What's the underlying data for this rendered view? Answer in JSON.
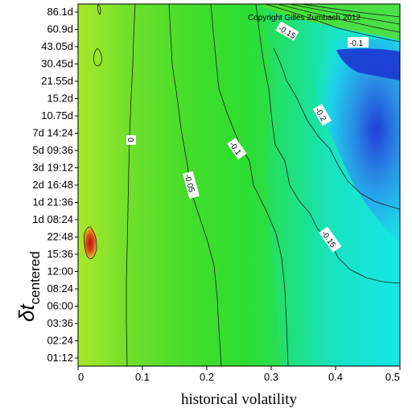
{
  "chart_data": {
    "type": "heatmap",
    "subtype": "filled-contour",
    "xlabel": "historical volatility",
    "ylabel": "δt",
    "ylabel_subscript": "centered",
    "xlim": [
      0,
      0.5
    ],
    "x_ticks": [
      "0",
      "0.1",
      "0.2",
      "0.3",
      "0.4",
      "0.5"
    ],
    "y_ticks": [
      "01:12",
      "02:24",
      "03:36",
      "06:00",
      "08:24",
      "12:00",
      "15:36",
      "22:48",
      "1d 08:24",
      "1d 21:36",
      "2d 16:48",
      "3d 19:12",
      "5d 09:36",
      "7d 14:24",
      "10.75d",
      "15.2d",
      "21.55d",
      "30.45d",
      "43.05d",
      "60.9d",
      "86.1d"
    ],
    "contour_levels": [
      "-0.15",
      "-0.1",
      "0",
      "-0.05",
      "-0.1",
      "-0.2",
      "-0.15"
    ],
    "color_scale": {
      "high": "#e8ee2a",
      "mid": "#27dd2a",
      "low": "#18e6dc",
      "lowest": "#1f4fd8",
      "peak": "#b71818"
    },
    "copyright": "Copyright Gilles Zumbach 2012"
  }
}
